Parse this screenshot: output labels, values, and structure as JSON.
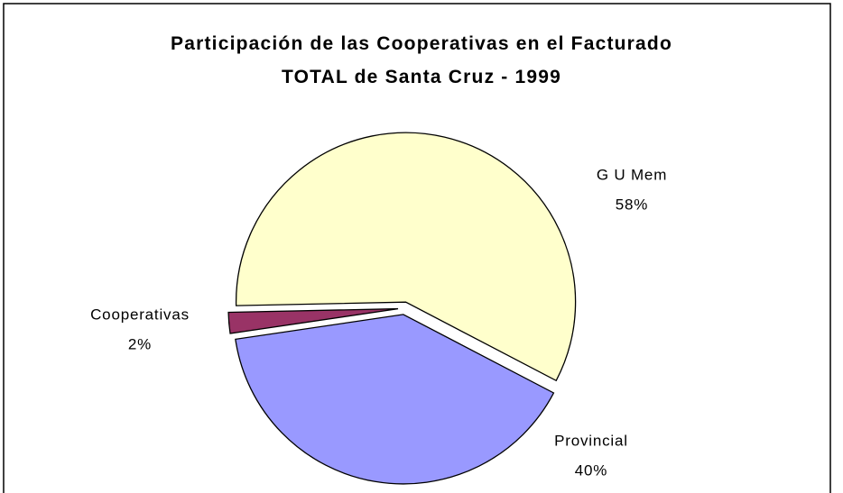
{
  "chart_data": {
    "type": "pie",
    "title": "Participación de las Cooperativas en el Facturado TOTAL de Santa Cruz - 1999",
    "categories": [
      "G U Mem",
      "Provincial",
      "Cooperativas"
    ],
    "values": [
      58,
      40,
      2
    ],
    "value_labels": [
      "58%",
      "40%",
      "2%"
    ],
    "colors": [
      "#ffffcc",
      "#9999ff",
      "#993366"
    ]
  }
}
